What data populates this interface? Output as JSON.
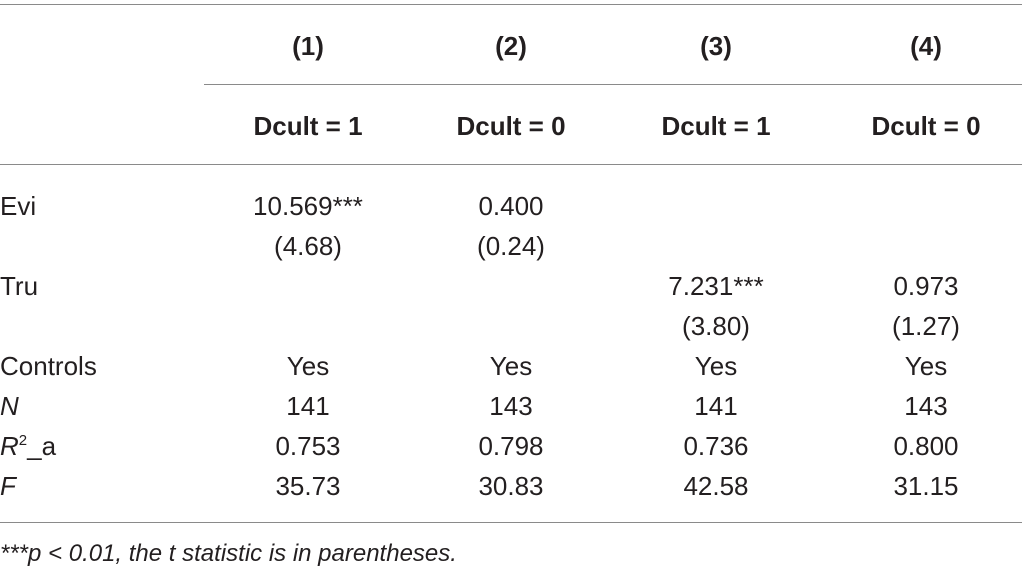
{
  "table": {
    "column_numbers": [
      "(1)",
      "(2)",
      "(3)",
      "(4)"
    ],
    "column_groups": [
      "Dcult = 1",
      "Dcult = 0",
      "Dcult = 1",
      "Dcult = 0"
    ],
    "rows": {
      "evi": {
        "label": "Evi",
        "coef": [
          "10.569***",
          "0.400",
          "",
          ""
        ],
        "tstat": [
          "(4.68)",
          "(0.24)",
          "",
          ""
        ]
      },
      "tru": {
        "label": "Tru",
        "coef": [
          "",
          "",
          "7.231***",
          "0.973"
        ],
        "tstat": [
          "",
          "",
          "(3.80)",
          "(1.27)"
        ]
      },
      "controls": {
        "label": "Controls",
        "values": [
          "Yes",
          "Yes",
          "Yes",
          "Yes"
        ]
      },
      "n": {
        "label": "N",
        "values": [
          "141",
          "143",
          "141",
          "143"
        ]
      },
      "r2a": {
        "label_main": "R",
        "label_sup": "2",
        "label_suffix": "_a",
        "values": [
          "0.753",
          "0.798",
          "0.736",
          "0.800"
        ]
      },
      "f": {
        "label": "F",
        "values": [
          "35.73",
          "30.83",
          "42.58",
          "31.15"
        ]
      }
    },
    "note": "***p < 0.01, the t statistic is in parentheses."
  }
}
